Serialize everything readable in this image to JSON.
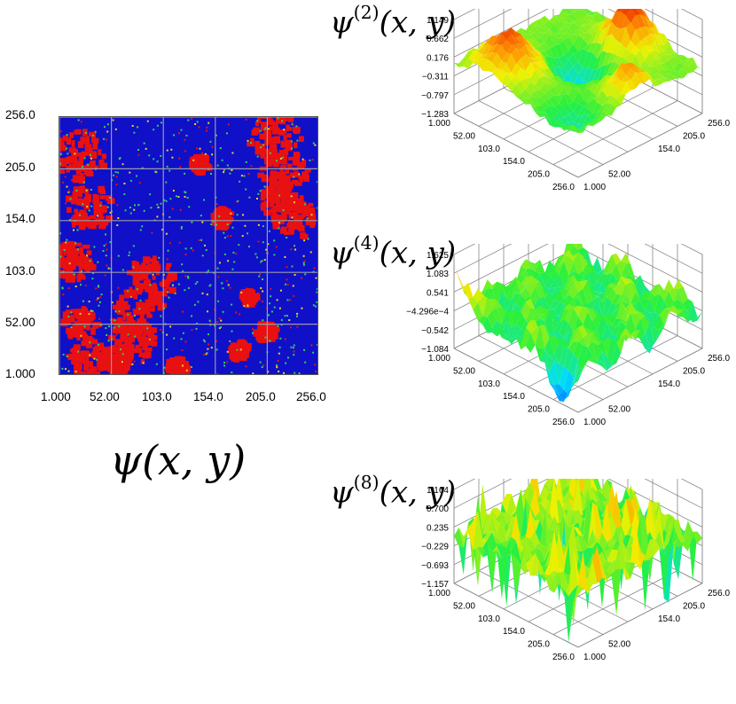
{
  "chart_data": [
    {
      "type": "heatmap",
      "title": "ψ(x, y)",
      "x_ticks": [
        "1.000",
        "52.00",
        "103.0",
        "154.0",
        "205.0",
        "256.0"
      ],
      "y_ticks": [
        "256.0",
        "205.0",
        "154.0",
        "103.0",
        "52.00",
        "1.000"
      ],
      "xlim": [
        1,
        256
      ],
      "ylim": [
        1,
        256
      ],
      "grid": true,
      "colors": {
        "background": "#1010c8",
        "phase": "#e81010",
        "interface": "#30d060"
      }
    },
    {
      "type": "surface",
      "title_base": "ψ",
      "title_sup": "(2)",
      "title_args": "(x, y)",
      "z_ticks": [
        "1.149",
        "0.662",
        "0.176",
        "−0.311",
        "−0.797",
        "−1.283"
      ],
      "x_ticks": [
        "1.000",
        "52.00",
        "103.0",
        "154.0",
        "205.0",
        "256.0"
      ],
      "y_ticks": [
        "256.0",
        "205.0",
        "154.0",
        "52.00",
        "1.000"
      ],
      "zlim": [
        -1.283,
        1.149
      ]
    },
    {
      "type": "surface",
      "title_base": "ψ",
      "title_sup": "(4)",
      "title_args": "(x, y)",
      "z_ticks": [
        "1.625",
        "1.083",
        "0.541",
        "−4.296e−4",
        "−0.542",
        "−1.084"
      ],
      "x_ticks": [
        "1.000",
        "52.00",
        "103.0",
        "154.0",
        "205.0",
        "256.0"
      ],
      "y_ticks": [
        "256.0",
        "205.0",
        "154.0",
        "52.00",
        "1.000"
      ],
      "zlim": [
        -1.084,
        1.625
      ]
    },
    {
      "type": "surface",
      "title_base": "ψ",
      "title_sup": "(8)",
      "title_args": "(x, y)",
      "z_ticks": [
        "1.164",
        "0.700",
        "0.235",
        "−0.229",
        "−0.693",
        "−1.157"
      ],
      "x_ticks": [
        "1.000",
        "52.00",
        "103.0",
        "154.0",
        "205.0",
        "256.0"
      ],
      "y_ticks": [
        "256.0",
        "205.0",
        "154.0",
        "52.00",
        "1.000"
      ],
      "zlim": [
        -1.157,
        1.164
      ]
    }
  ]
}
